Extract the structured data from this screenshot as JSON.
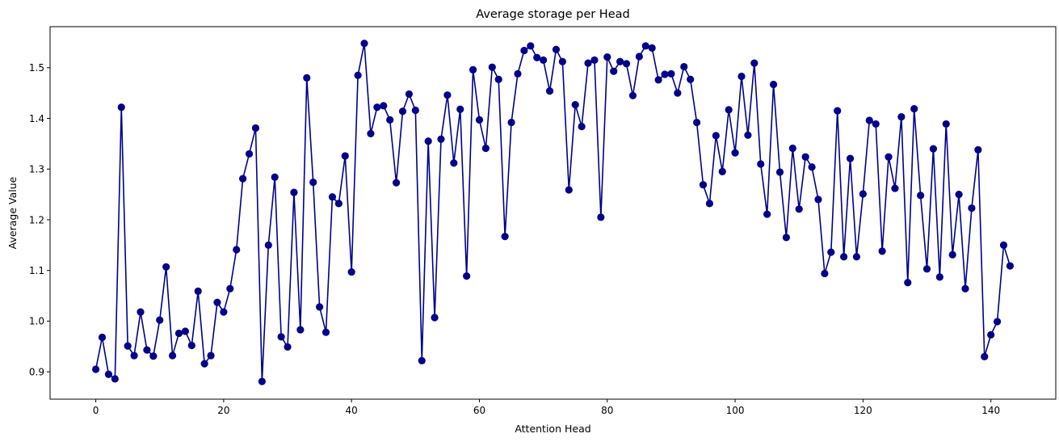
{
  "chart_data": {
    "type": "line",
    "title": "Average storage per Head",
    "xlabel": "Attention Head",
    "ylabel": "Average Value",
    "xlim": [
      -7.15,
      150.15
    ],
    "ylim": [
      0.846,
      1.581
    ],
    "xticks": [
      0,
      20,
      40,
      60,
      80,
      100,
      120,
      140
    ],
    "xtick_labels": [
      "0",
      "20",
      "40",
      "60",
      "80",
      "100",
      "120",
      "140"
    ],
    "yticks": [
      0.9,
      1.0,
      1.1,
      1.2,
      1.3,
      1.4,
      1.5
    ],
    "ytick_labels": [
      "0.9",
      "1.0",
      "1.1",
      "1.2",
      "1.3",
      "1.4",
      "1.5"
    ],
    "grid": false,
    "legend": false,
    "colors": {
      "series": "#00008b"
    },
    "series": [
      {
        "x": [
          0,
          1,
          2,
          3,
          4,
          5,
          6,
          7,
          8,
          9,
          10,
          11,
          12,
          13,
          14,
          15,
          16,
          17,
          18,
          19,
          20,
          21,
          22,
          23,
          24,
          25,
          26,
          27,
          28,
          29,
          30,
          31,
          32,
          33,
          34,
          35,
          36,
          37,
          38,
          39,
          40,
          41,
          42,
          43,
          44,
          45,
          46,
          47,
          48,
          49,
          50,
          51,
          52,
          53,
          54,
          55,
          56,
          57,
          58,
          59,
          60,
          61,
          62,
          63,
          64,
          65,
          66,
          67,
          68,
          69,
          70,
          71,
          72,
          73,
          74,
          75,
          76,
          77,
          78,
          79,
          80,
          81,
          82,
          83,
          84,
          85,
          86,
          87,
          88,
          89,
          90,
          91,
          92,
          93,
          94,
          95,
          96,
          97,
          98,
          99,
          100,
          101,
          102,
          103,
          104,
          105,
          106,
          107,
          108,
          109,
          110,
          111,
          112,
          113,
          114,
          115,
          116,
          117,
          118,
          119,
          120,
          121,
          122,
          123,
          124,
          125,
          126,
          127,
          128,
          129,
          130,
          131,
          132,
          133,
          134,
          135,
          136,
          137,
          138,
          139,
          140,
          141,
          142,
          143
        ],
        "values": [
          0.905,
          0.968,
          0.895,
          0.886,
          1.422,
          0.951,
          0.932,
          1.018,
          0.943,
          0.931,
          1.002,
          1.107,
          0.932,
          0.976,
          0.98,
          0.952,
          1.059,
          0.916,
          0.932,
          1.037,
          1.018,
          1.064,
          1.141,
          1.281,
          1.33,
          1.381,
          0.881,
          1.15,
          1.284,
          0.969,
          0.949,
          1.254,
          0.983,
          1.48,
          1.274,
          1.028,
          0.978,
          1.245,
          1.232,
          1.326,
          1.097,
          1.485,
          1.548,
          1.37,
          1.422,
          1.425,
          1.397,
          1.273,
          1.414,
          1.448,
          1.416,
          0.922,
          1.355,
          1.007,
          1.359,
          1.446,
          1.312,
          1.418,
          1.089,
          1.496,
          1.397,
          1.341,
          1.501,
          1.477,
          1.167,
          1.392,
          1.488,
          1.534,
          1.543,
          1.52,
          1.515,
          1.454,
          1.536,
          1.512,
          1.259,
          1.427,
          1.384,
          1.509,
          1.515,
          1.205,
          1.521,
          1.493,
          1.512,
          1.508,
          1.445,
          1.522,
          1.543,
          1.539,
          1.476,
          1.487,
          1.488,
          1.45,
          1.502,
          1.477,
          1.392,
          1.269,
          1.232,
          1.366,
          1.295,
          1.417,
          1.332,
          1.483,
          1.367,
          1.509,
          1.31,
          1.211,
          1.467,
          1.294,
          1.165,
          1.341,
          1.221,
          1.324,
          1.304,
          1.24,
          1.094,
          1.136,
          1.415,
          1.127,
          1.321,
          1.127,
          1.251,
          1.396,
          1.389,
          1.138,
          1.324,
          1.262,
          1.403,
          1.076,
          1.419,
          1.248,
          1.103,
          1.34,
          1.087,
          1.389,
          1.131,
          1.25,
          1.064,
          1.223,
          1.338,
          0.93,
          0.973,
          0.999,
          1.15,
          1.109
        ]
      }
    ]
  }
}
